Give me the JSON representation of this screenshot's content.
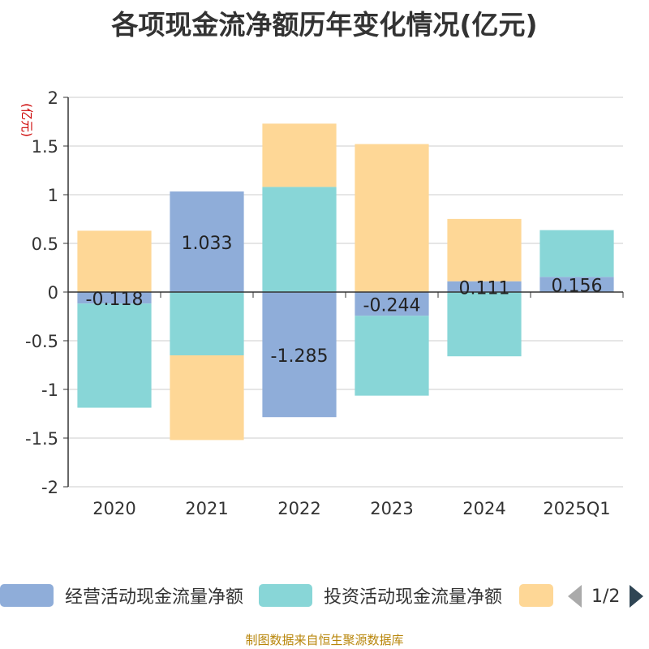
{
  "footer": "制图数据来自恒生聚源数据库",
  "legend": {
    "items": [
      {
        "label": "经营活动现金流量净额",
        "color": "#8fadd9"
      },
      {
        "label": "投资活动现金流量净额",
        "color": "#88d6d7"
      },
      {
        "label": "",
        "color": "#fed796"
      }
    ],
    "page": "1/2"
  },
  "chart_data": {
    "type": "bar",
    "stacked": true,
    "title": "各项现金流净额历年变化情况(亿元)",
    "unit_label": "(亿元)",
    "categories": [
      "2020",
      "2021",
      "2022",
      "2023",
      "2024",
      "2025Q1"
    ],
    "series": [
      {
        "name": "经营活动现金流量净额",
        "color": "#8fadd9",
        "values": [
          -0.118,
          1.033,
          -1.285,
          -0.244,
          0.111,
          0.156
        ],
        "show_labels": true
      },
      {
        "name": "投资活动现金流量净额",
        "color": "#88d6d7",
        "values": [
          -1.07,
          -0.65,
          1.08,
          -0.82,
          -0.66,
          0.48
        ],
        "show_labels": false
      },
      {
        "color": "#fed796",
        "values": [
          0.63,
          -0.87,
          0.65,
          1.52,
          0.64,
          0
        ],
        "show_labels": false
      }
    ],
    "ylim": [
      -2,
      2
    ],
    "yticks": [
      "2",
      "1.5",
      "1",
      "0.5",
      "0",
      "-0.5",
      "-1",
      "-1.5",
      "-2"
    ],
    "ytick_values": [
      2,
      1.5,
      1,
      0.5,
      0,
      -0.5,
      -1,
      -1.5,
      -2
    ],
    "grid": true
  }
}
